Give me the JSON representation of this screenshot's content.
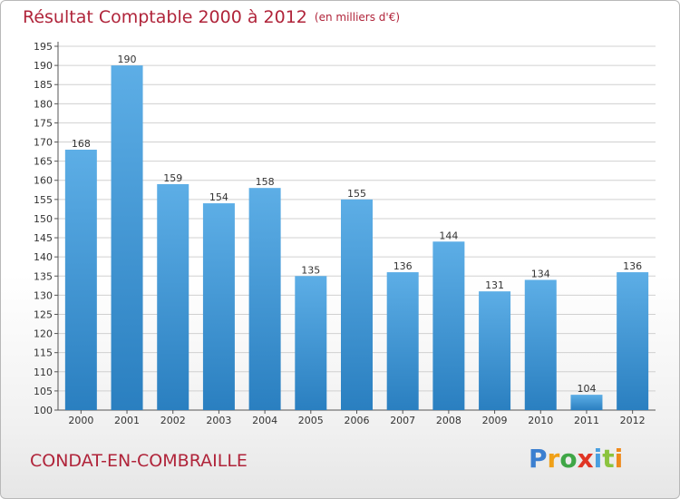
{
  "title": "Résultat Comptable 2000 à 2012",
  "subtitle": "(en milliers d'€)",
  "commune": "CONDAT-EN-COMBRAILLE",
  "logo": {
    "letters": [
      "P",
      "r",
      "o",
      "x",
      "i",
      "t",
      "i"
    ]
  },
  "colors": {
    "title": "#b0243a",
    "bar_top": "#5daee6",
    "bar_bottom": "#2a7fc0",
    "grid": "#d0d0d0"
  },
  "chart_data": {
    "type": "bar",
    "categories": [
      "2000",
      "2001",
      "2002",
      "2003",
      "2004",
      "2005",
      "2006",
      "2007",
      "2008",
      "2009",
      "2010",
      "2011",
      "2012"
    ],
    "values": [
      168,
      190,
      159,
      154,
      158,
      135,
      155,
      136,
      144,
      131,
      134,
      104,
      136
    ],
    "data_labels": [
      "168",
      "190",
      "159",
      "154",
      "158",
      "135",
      "155",
      "136",
      "144",
      "131",
      "134",
      "104",
      "136"
    ],
    "y_ticks": [
      "100",
      "105",
      "110",
      "115",
      "120",
      "125",
      "130",
      "135",
      "140",
      "145",
      "150",
      "155",
      "160",
      "165",
      "170",
      "175",
      "180",
      "185",
      "190",
      "195"
    ],
    "ylim": [
      100,
      195
    ],
    "grid": true
  }
}
